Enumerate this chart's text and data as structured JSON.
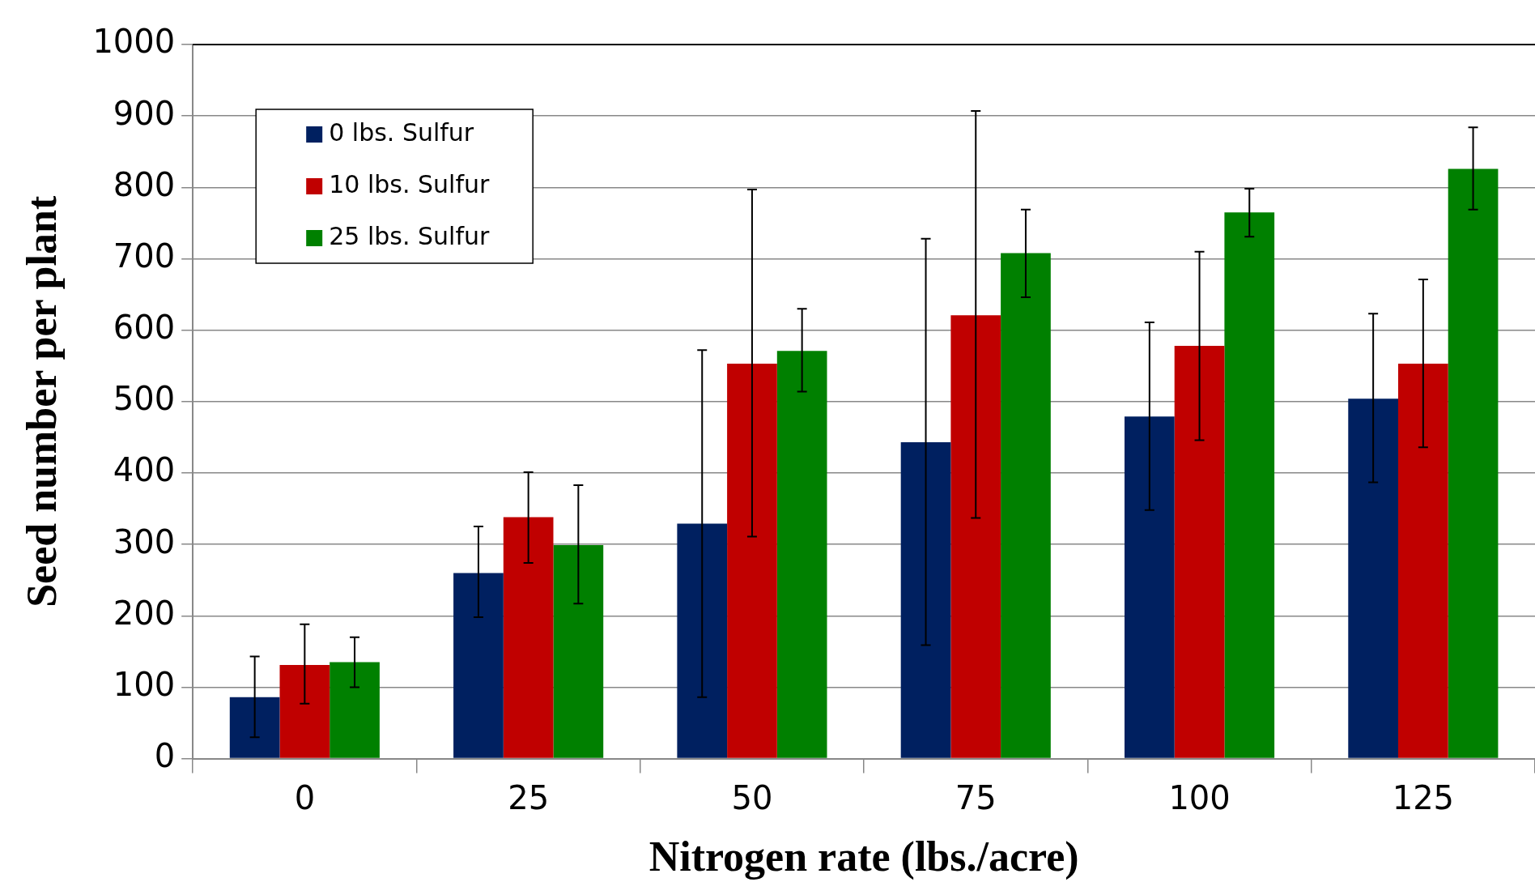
{
  "chart_data": {
    "type": "bar",
    "xlabel": "Nitrogen rate (lbs./acre)",
    "ylabel": "Seed number per plant",
    "categories": [
      "0",
      "25",
      "50",
      "75",
      "100",
      "125"
    ],
    "series": [
      {
        "name": "0 lbs. Sulfur",
        "color": "#002060",
        "values": [
          86,
          260,
          329,
          443,
          479,
          504
        ],
        "errors": [
          [
            30,
            143
          ],
          [
            198,
            325
          ],
          [
            86,
            572
          ],
          [
            159,
            728
          ],
          [
            348,
            611
          ],
          [
            387,
            623
          ]
        ]
      },
      {
        "name": "10 lbs. Sulfur",
        "color": "#c00000",
        "values": [
          131,
          338,
          553,
          621,
          578,
          553
        ],
        "errors": [
          [
            77,
            188
          ],
          [
            274,
            401
          ],
          [
            311,
            797
          ],
          [
            337,
            907
          ],
          [
            446,
            710
          ],
          [
            436,
            671
          ]
        ]
      },
      {
        "name": "25 lbs. Sulfur",
        "color": "#008000",
        "values": [
          135,
          299,
          571,
          708,
          765,
          826
        ],
        "errors": [
          [
            100,
            170
          ],
          [
            217,
            383
          ],
          [
            514,
            630
          ],
          [
            646,
            769
          ],
          [
            731,
            798
          ],
          [
            769,
            884
          ]
        ]
      }
    ],
    "ylim": [
      0,
      1000
    ],
    "yticks": [
      0,
      100,
      200,
      300,
      400,
      500,
      600,
      700,
      800,
      900,
      1000
    ],
    "grid": "y",
    "legend": "top left"
  }
}
